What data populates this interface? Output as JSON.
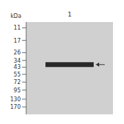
{
  "chart_data": {
    "type": "gel",
    "categories": [
      "1"
    ],
    "values": [
      39.3
    ],
    "color": "#1a1a1a",
    "y_label": "kDa",
    "log": "y",
    "ylim": [
      220,
      9
    ],
    "yticks": [
      170,
      130,
      95,
      72,
      55,
      43,
      34,
      26,
      17,
      11
    ]
  }
}
